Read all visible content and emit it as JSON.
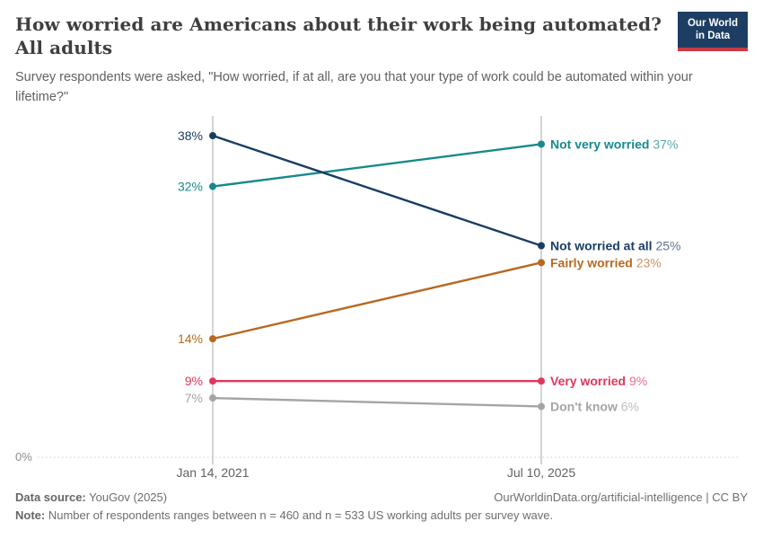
{
  "header": {
    "title": "How worried are Americans about their work being automated? All adults",
    "subtitle": "Survey respondents were asked, \"How worried, if at all, are you that your type of work could be automated within your lifetime?\"",
    "logo": {
      "line1": "Our World",
      "line2": "in Data",
      "bg": "#1d3d63",
      "accent": "#c93a44"
    }
  },
  "chart_data": {
    "type": "line",
    "title": "How worried are Americans about their work being automated? All adults",
    "subtitle": "Survey respondents were asked, \"How worried, if at all, are you that your type of work could be automated within your lifetime?\"",
    "x": [
      "Jan 14, 2021",
      "Jul 10, 2025"
    ],
    "unit": "%",
    "ylim": [
      0,
      40
    ],
    "baseline_label": "0%",
    "grid": "baseline-dotted-only",
    "legend_position": "inline-right-of-line",
    "series": [
      {
        "name": "Not very worried",
        "values": [
          32,
          37
        ],
        "color": "#18898c"
      },
      {
        "name": "Not worried at all",
        "values": [
          38,
          25
        ],
        "color": "#1a3e62"
      },
      {
        "name": "Fairly worried",
        "values": [
          14,
          23
        ],
        "color": "#b8691f"
      },
      {
        "name": "Very worried",
        "values": [
          9,
          9
        ],
        "color": "#e2365b"
      },
      {
        "name": "Don't know",
        "values": [
          7,
          6
        ],
        "color": "#a5a5a5"
      }
    ]
  },
  "footer": {
    "datasource_label": "Data source:",
    "datasource_value": " YouGov (2025)",
    "credit": "OurWorldinData.org/artificial-intelligence | CC BY",
    "note_label": "Note:",
    "note_value": " Number of respondents ranges between n = 460 and n = 533 US working adults per survey wave."
  }
}
